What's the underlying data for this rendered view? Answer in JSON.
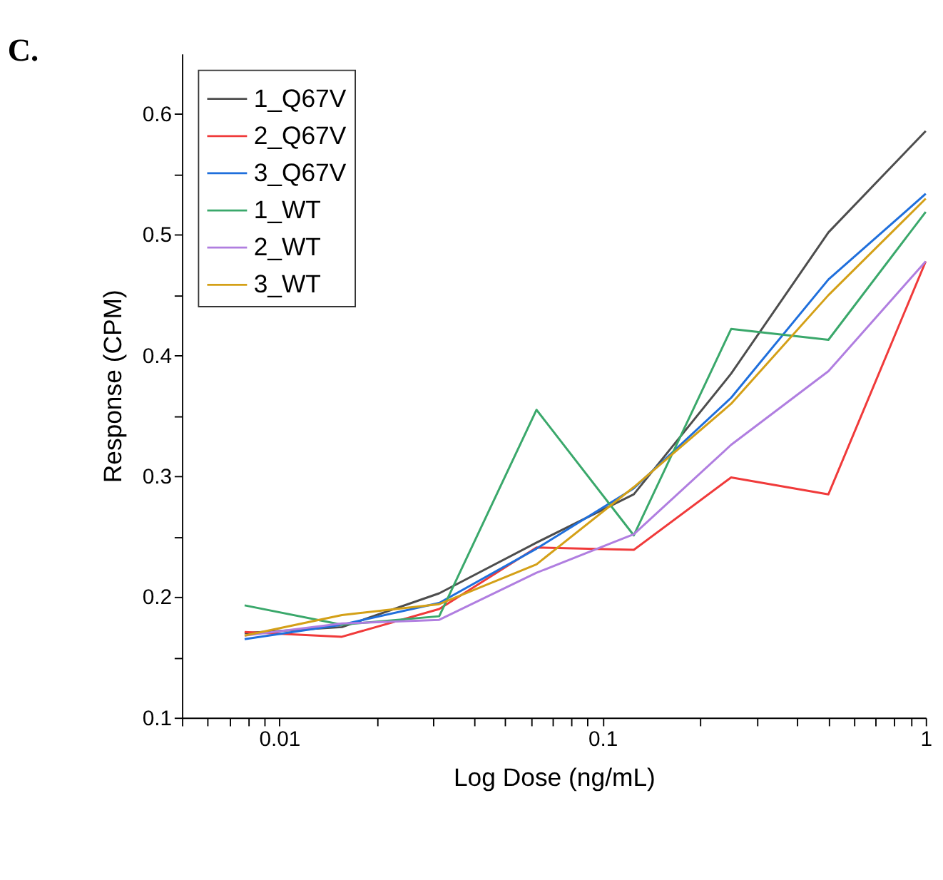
{
  "chart_data": {
    "type": "line",
    "title": "C.",
    "xlabel": "Log Dose (ng/mL)",
    "ylabel": "Response (CPM)",
    "x": [
      0.0078125,
      0.015625,
      0.03125,
      0.0625,
      0.125,
      0.25,
      0.5,
      1
    ],
    "series": [
      {
        "name": "1_Q67V",
        "color": "#4d4d4d",
        "values": [
          0.17,
          0.175,
          0.203,
          0.245,
          0.285,
          0.385,
          0.502,
          0.586
        ]
      },
      {
        "name": "2_Q67V",
        "color": "#f03a3a",
        "values": [
          0.171,
          0.167,
          0.19,
          0.241,
          0.239,
          0.299,
          0.285,
          0.478
        ]
      },
      {
        "name": "3_Q67V",
        "color": "#1f6fdc",
        "values": [
          0.165,
          0.177,
          0.195,
          0.24,
          0.29,
          0.365,
          0.463,
          0.534
        ]
      },
      {
        "name": "1_WT",
        "color": "#3aa86b",
        "values": [
          0.193,
          0.177,
          0.184,
          0.355,
          0.251,
          0.422,
          0.413,
          0.519
        ]
      },
      {
        "name": "2_WT",
        "color": "#b07ee0",
        "values": [
          0.168,
          0.178,
          0.181,
          0.22,
          0.252,
          0.326,
          0.387,
          0.478
        ]
      },
      {
        "name": "3_WT",
        "color": "#d4a017",
        "values": [
          0.168,
          0.185,
          0.194,
          0.227,
          0.291,
          0.36,
          0.45,
          0.53
        ]
      }
    ],
    "log": "x",
    "xlim": [
      0.005,
      1
    ],
    "ylim": [
      0.1,
      0.65
    ],
    "xticks": [
      {
        "value": 0.005,
        "label": null
      },
      {
        "value": 0.006,
        "label": null
      },
      {
        "value": 0.007,
        "label": null
      },
      {
        "value": 0.008,
        "label": null
      },
      {
        "value": 0.009,
        "label": null
      },
      0.01,
      {
        "value": 0.02,
        "label": null
      },
      {
        "value": 0.03,
        "label": null
      },
      {
        "value": 0.04,
        "label": null
      },
      {
        "value": 0.05,
        "label": null
      },
      {
        "value": 0.06,
        "label": null
      },
      {
        "value": 0.07,
        "label": null
      },
      {
        "value": 0.08,
        "label": null
      },
      {
        "value": 0.09,
        "label": null
      },
      0.1,
      {
        "value": 0.2,
        "label": null
      },
      {
        "value": 0.3,
        "label": null
      },
      {
        "value": 0.4,
        "label": null
      },
      {
        "value": 0.5,
        "label": null
      },
      {
        "value": 0.6,
        "label": null
      },
      {
        "value": 0.7,
        "label": null
      },
      {
        "value": 0.8,
        "label": null
      },
      {
        "value": 0.9,
        "label": null
      },
      1
    ],
    "yticks": [
      0.1,
      {
        "value": 0.15,
        "label": null
      },
      0.2,
      {
        "value": 0.25,
        "label": null
      },
      0.3,
      {
        "value": 0.35,
        "label": null
      },
      0.4,
      {
        "value": 0.45,
        "label": null
      },
      0.5,
      {
        "value": 0.55,
        "label": null
      },
      0.6
    ],
    "grid": false,
    "legend": "top left",
    "marker": "none",
    "line_style": "solid"
  }
}
